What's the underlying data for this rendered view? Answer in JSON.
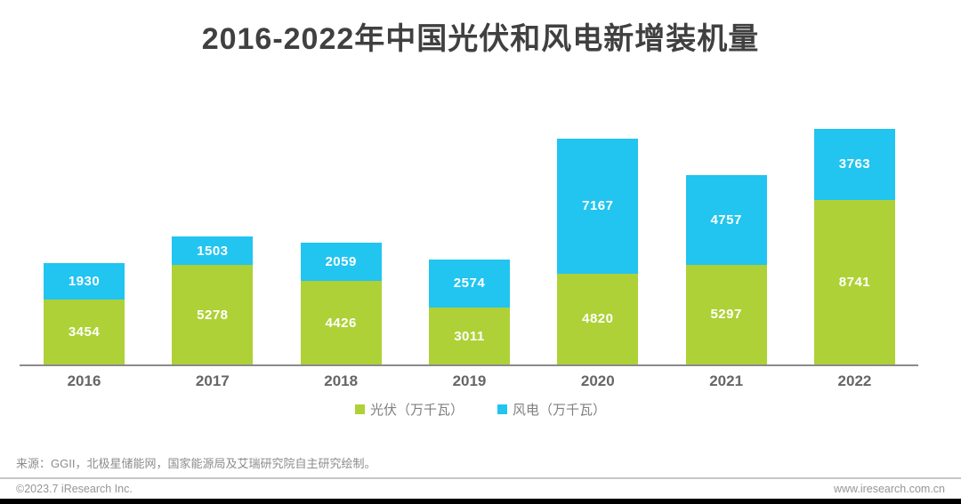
{
  "title": "2016-2022年中国光伏和风电新增装机量",
  "chart_data": {
    "type": "bar",
    "stacked": true,
    "title": "2016-2022年中国光伏和风电新增装机量",
    "categories": [
      "2016",
      "2017",
      "2018",
      "2019",
      "2020",
      "2021",
      "2022"
    ],
    "series": [
      {
        "name": "光伏（万千瓦）",
        "color": "#aed137",
        "values": [
          3454,
          5278,
          4426,
          3011,
          4820,
          5297,
          8741
        ]
      },
      {
        "name": "风电（万千瓦）",
        "color": "#22c4f0",
        "values": [
          1930,
          1503,
          2059,
          2574,
          7167,
          4757,
          3763
        ]
      }
    ],
    "totals": [
      5384,
      6781,
      6485,
      5585,
      11987,
      10054,
      12504
    ],
    "xlabel": "",
    "ylabel": "",
    "ylim": [
      0,
      12504
    ],
    "grid": false,
    "legend_position": "bottom",
    "value_labels": "inside-segment-white"
  },
  "colors": {
    "pv_green": "#aed137",
    "wind_blue": "#22c4f0",
    "title_text": "#404040",
    "axis_label": "#666666",
    "legend_text": "#7f7f7f"
  },
  "source_note": "来源：GGII，北极星储能网，国家能源局及艾瑞研究院自主研究绘制。",
  "footer": {
    "left": "©2023.7 iResearch Inc.",
    "right": "www.iresearch.com.cn"
  }
}
